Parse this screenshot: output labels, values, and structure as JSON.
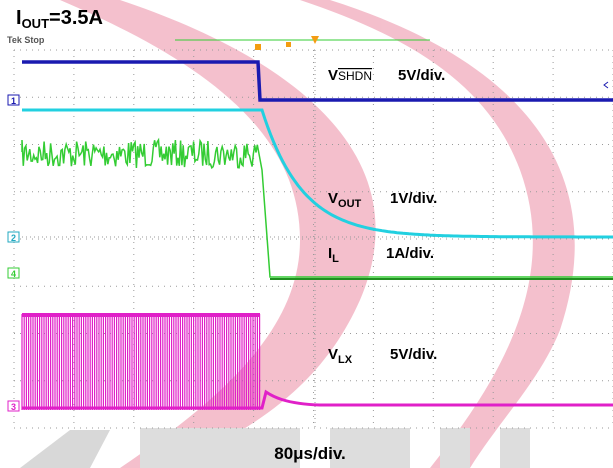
{
  "header": {
    "title": {
      "main": "I",
      "sub": "OUT",
      "rest": "=3.5A"
    },
    "status": "Tek Stop"
  },
  "traces": [
    {
      "symbol": "V",
      "sub": "SHDN",
      "scale": "5V/div."
    },
    {
      "symbol": "V",
      "sub": "OUT",
      "scale": "1V/div."
    },
    {
      "symbol": "I",
      "sub": "L",
      "scale": "1A/div."
    },
    {
      "symbol": "V",
      "sub": "LX",
      "scale": "5V/div."
    }
  ],
  "markers": [
    "1",
    "2",
    "4",
    "3"
  ],
  "timebase": "80μs/div."
}
